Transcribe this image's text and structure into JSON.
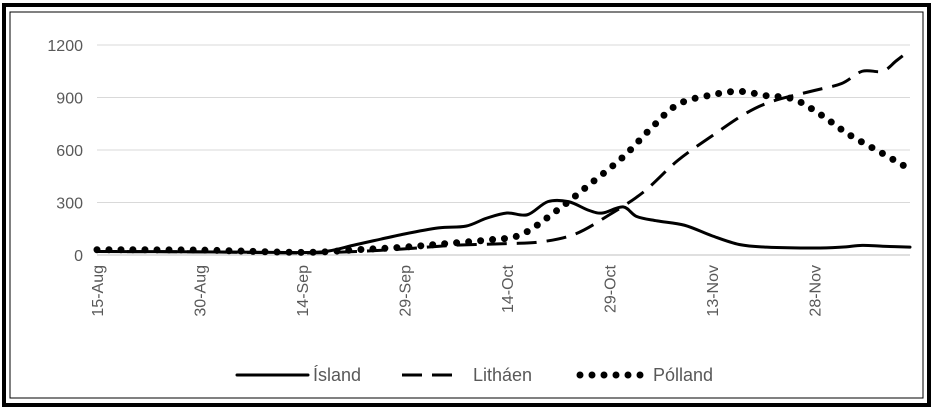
{
  "chart_data": {
    "type": "line",
    "title": "",
    "xlabel": "",
    "ylabel": "",
    "ylim": [
      0,
      1200
    ],
    "yticks": [
      0,
      300,
      600,
      900,
      1200
    ],
    "x_start": "2020-08-15",
    "x_end": "2020-12-12",
    "x_ticks": [
      {
        "date": "2020-08-15",
        "label": "15-Aug"
      },
      {
        "date": "2020-08-30",
        "label": "30-Aug"
      },
      {
        "date": "2020-09-14",
        "label": "14-Sep"
      },
      {
        "date": "2020-09-29",
        "label": "29-Sep"
      },
      {
        "date": "2020-10-14",
        "label": "14-Oct"
      },
      {
        "date": "2020-10-29",
        "label": "29-Oct"
      },
      {
        "date": "2020-11-13",
        "label": "13-Nov"
      },
      {
        "date": "2020-11-28",
        "label": "28-Nov"
      }
    ],
    "grid": "horizontal",
    "legend_position": "bottom",
    "series": [
      {
        "name": "Ísland",
        "style": "solid",
        "color": "#000000",
        "points": [
          [
            "2020-08-15",
            20
          ],
          [
            "2020-08-30",
            18
          ],
          [
            "2020-09-10",
            15
          ],
          [
            "2020-09-17",
            18
          ],
          [
            "2020-09-22",
            60
          ],
          [
            "2020-09-29",
            120
          ],
          [
            "2020-10-04",
            155
          ],
          [
            "2020-10-08",
            165
          ],
          [
            "2020-10-11",
            210
          ],
          [
            "2020-10-14",
            240
          ],
          [
            "2020-10-17",
            230
          ],
          [
            "2020-10-20",
            305
          ],
          [
            "2020-10-23",
            305
          ],
          [
            "2020-10-26",
            255
          ],
          [
            "2020-10-28",
            240
          ],
          [
            "2020-10-31",
            275
          ],
          [
            "2020-11-02",
            220
          ],
          [
            "2020-11-05",
            195
          ],
          [
            "2020-11-09",
            170
          ],
          [
            "2020-11-13",
            110
          ],
          [
            "2020-11-17",
            60
          ],
          [
            "2020-11-21",
            45
          ],
          [
            "2020-11-28",
            40
          ],
          [
            "2020-12-02",
            45
          ],
          [
            "2020-12-05",
            55
          ],
          [
            "2020-12-08",
            50
          ],
          [
            "2020-12-12",
            45
          ]
        ]
      },
      {
        "name": "Litháen",
        "style": "dashed",
        "color": "#000000",
        "points": [
          [
            "2020-08-15",
            20
          ],
          [
            "2020-08-30",
            18
          ],
          [
            "2020-09-14",
            12
          ],
          [
            "2020-09-22",
            20
          ],
          [
            "2020-09-29",
            35
          ],
          [
            "2020-10-06",
            55
          ],
          [
            "2020-10-14",
            65
          ],
          [
            "2020-10-19",
            75
          ],
          [
            "2020-10-24",
            120
          ],
          [
            "2020-10-29",
            230
          ],
          [
            "2020-11-03",
            360
          ],
          [
            "2020-11-08",
            540
          ],
          [
            "2020-11-13",
            680
          ],
          [
            "2020-11-18",
            810
          ],
          [
            "2020-11-22",
            880
          ],
          [
            "2020-11-28",
            940
          ],
          [
            "2020-12-02",
            980
          ],
          [
            "2020-12-05",
            1050
          ],
          [
            "2020-12-08",
            1050
          ],
          [
            "2020-12-10",
            1110
          ],
          [
            "2020-12-12",
            1170
          ]
        ]
      },
      {
        "name": "Pólland",
        "style": "dotted",
        "color": "#000000",
        "points": [
          [
            "2020-08-15",
            30
          ],
          [
            "2020-08-30",
            28
          ],
          [
            "2020-09-14",
            15
          ],
          [
            "2020-09-22",
            30
          ],
          [
            "2020-09-29",
            45
          ],
          [
            "2020-10-05",
            65
          ],
          [
            "2020-10-11",
            85
          ],
          [
            "2020-10-16",
            115
          ],
          [
            "2020-10-21",
            245
          ],
          [
            "2020-10-26",
            400
          ],
          [
            "2020-10-31",
            560
          ],
          [
            "2020-11-04",
            720
          ],
          [
            "2020-11-08",
            860
          ],
          [
            "2020-11-13",
            915
          ],
          [
            "2020-11-17",
            935
          ],
          [
            "2020-11-21",
            910
          ],
          [
            "2020-11-25",
            890
          ],
          [
            "2020-11-29",
            800
          ],
          [
            "2020-12-03",
            690
          ],
          [
            "2020-12-08",
            580
          ],
          [
            "2020-12-12",
            490
          ]
        ]
      }
    ]
  }
}
